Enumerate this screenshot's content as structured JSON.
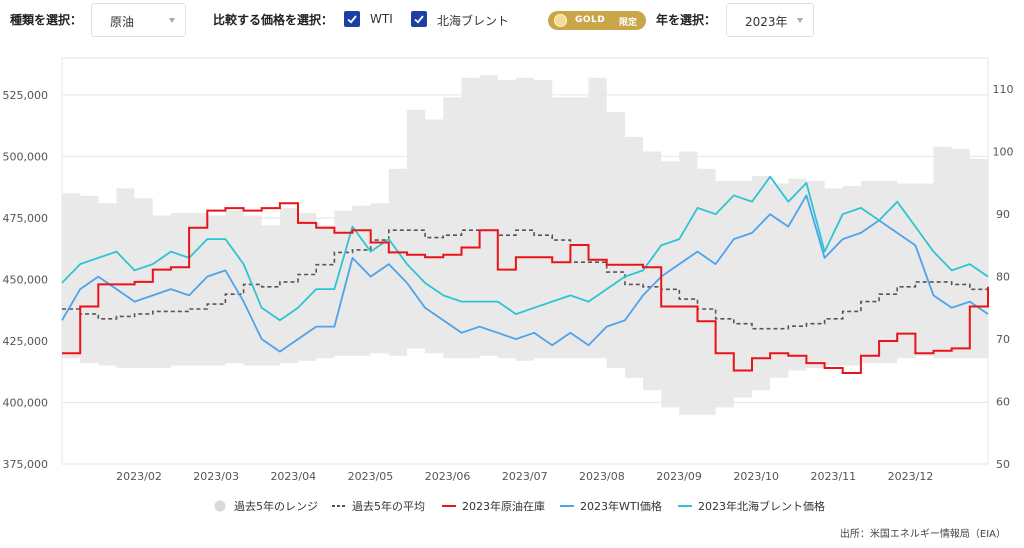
{
  "controls": {
    "type_label": "種類を選択：",
    "type_value": "原油",
    "compare_label": "比較する価格を選択：",
    "check1": "WTI",
    "check2": "北海ブレント",
    "gold": "GOLD",
    "gold_limited": "限定",
    "year_label": "年を選択：",
    "year_value": "2023年"
  },
  "source": "出所：米国エネルギー情報局（EIA）",
  "colors": {
    "range": "#e9e9e9",
    "avg": "#555555",
    "inventory": "#e8141a",
    "wti": "#4da3ec",
    "brent": "#2fc4d4",
    "checkbox": "#1c3fa6",
    "gold_badge": "#caa64b"
  },
  "chart_data": {
    "type": "line",
    "x_ticks": [
      "2023/02",
      "2023/03",
      "2023/04",
      "2023/05",
      "2023/06",
      "2023/07",
      "2023/08",
      "2023/09",
      "2023/10",
      "2023/11",
      "2023/12"
    ],
    "y_left": {
      "range": [
        375000,
        540000
      ],
      "ticks": [
        "375,000",
        "400,000",
        "425,000",
        "450,000",
        "475,000",
        "500,000",
        "525,000"
      ]
    },
    "y_right": {
      "range": [
        50,
        115
      ],
      "ticks": [
        "50",
        "60",
        "70",
        "80",
        "90",
        "100",
        "110"
      ]
    },
    "legend": [
      "過去5年のレンジ",
      "過去5年の平均",
      "2023年原油在庫",
      "2023年WTI価格",
      "2023年北海ブレント価格"
    ],
    "x_values": [
      0,
      1,
      2,
      3,
      4,
      5,
      6,
      7,
      8,
      9,
      10,
      11,
      12,
      13,
      14,
      15,
      16,
      17,
      18,
      19,
      20,
      21,
      22,
      23,
      24,
      25,
      26,
      27,
      28,
      29,
      30,
      31,
      32,
      33,
      34,
      35,
      36,
      37,
      38,
      39,
      40,
      41,
      42,
      43,
      44,
      45,
      46,
      47,
      48,
      49,
      50,
      51
    ],
    "range_high": [
      485000,
      484000,
      481000,
      487000,
      483000,
      476000,
      477000,
      477000,
      476000,
      478000,
      476000,
      472000,
      479000,
      477000,
      472000,
      478000,
      480000,
      481000,
      495000,
      519000,
      515000,
      524000,
      532000,
      533000,
      531000,
      532000,
      531000,
      524000,
      524000,
      532000,
      518000,
      508000,
      502000,
      498000,
      502000,
      495000,
      490000,
      490000,
      492000,
      489000,
      491000,
      490000,
      487000,
      488000,
      490000,
      490000,
      489000,
      489000,
      504000,
      503000,
      499000,
      494000
    ],
    "range_low": [
      418000,
      416000,
      415000,
      414000,
      414000,
      414000,
      415000,
      415000,
      415000,
      416000,
      415000,
      415000,
      416000,
      417000,
      418000,
      419000,
      419000,
      420000,
      419000,
      422000,
      420000,
      418000,
      418000,
      419000,
      418000,
      417000,
      418000,
      418000,
      418000,
      418000,
      414000,
      410000,
      405000,
      398000,
      395000,
      395000,
      398000,
      402000,
      405000,
      410000,
      413000,
      414000,
      415000,
      415000,
      416000,
      416000,
      418000,
      419000,
      418000,
      418000,
      418000,
      417000
    ],
    "avg_inventory": [
      438000,
      436000,
      434000,
      435000,
      436000,
      437000,
      437000,
      438000,
      440000,
      444000,
      448000,
      447000,
      449000,
      452000,
      456000,
      461000,
      462000,
      466000,
      470000,
      470000,
      467000,
      468000,
      470000,
      470000,
      468000,
      470000,
      468000,
      466000,
      457000,
      457000,
      453000,
      448000,
      447000,
      446000,
      442000,
      438000,
      434000,
      432000,
      430000,
      430000,
      431000,
      432000,
      434000,
      437000,
      441000,
      444000,
      447000,
      449000,
      449000,
      448000,
      446000,
      441000
    ],
    "inventory_2023": [
      420000,
      439000,
      448000,
      448000,
      449000,
      454000,
      455000,
      471000,
      478000,
      479000,
      478000,
      479000,
      481000,
      473000,
      471000,
      469000,
      470000,
      465000,
      461000,
      460000,
      459000,
      460000,
      463000,
      470000,
      454000,
      459000,
      459000,
      457000,
      464000,
      458000,
      456000,
      456000,
      455000,
      439000,
      439000,
      433000,
      420000,
      413000,
      418000,
      420000,
      419000,
      416000,
      414000,
      412000,
      419000,
      425000,
      428000,
      420000,
      421000,
      422000,
      439000,
      447000
    ],
    "wti_2023": [
      73,
      78,
      80,
      78,
      76,
      77,
      78,
      77,
      80,
      81,
      76,
      70,
      68,
      70,
      72,
      72,
      83,
      80,
      82,
      79,
      75,
      73,
      71,
      72,
      71,
      70,
      71,
      69,
      71,
      69,
      72,
      73,
      77,
      80,
      82,
      84,
      82,
      86,
      87,
      90,
      88,
      93,
      83,
      86,
      87,
      89,
      87,
      85,
      77,
      75,
      76,
      74
    ],
    "brent_2023": [
      79,
      82,
      83,
      84,
      81,
      82,
      84,
      83,
      86,
      86,
      82,
      75,
      73,
      75,
      78,
      78,
      88,
      84,
      86,
      82,
      79,
      77,
      76,
      76,
      76,
      74,
      75,
      76,
      77,
      76,
      78,
      80,
      81,
      85,
      86,
      91,
      90,
      93,
      92,
      96,
      92,
      95,
      84,
      90,
      91,
      89,
      92,
      88,
      84,
      81,
      82,
      80
    ]
  }
}
